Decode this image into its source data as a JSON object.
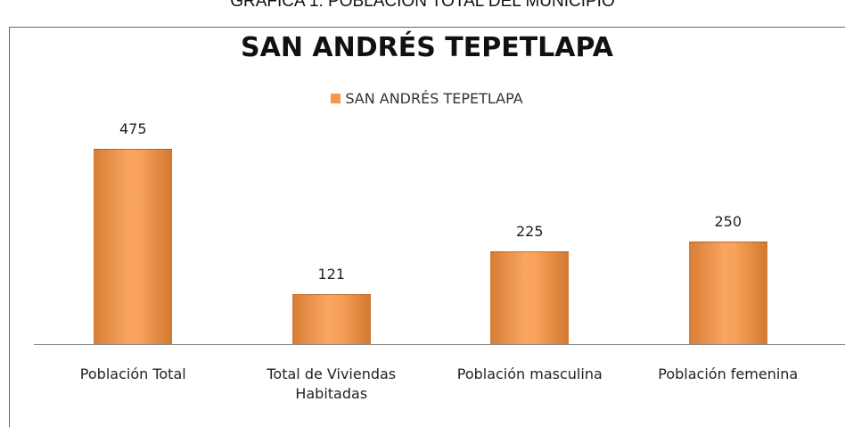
{
  "caption": "GRÁFICA 1.  POBLACIÓN  TOTAL DEL MUNICIPIO",
  "chart_data": {
    "type": "bar",
    "title": "SAN ANDRÉS TEPETLAPA",
    "categories": [
      "Población Total",
      "Total de Viviendas Habitadas",
      "Población masculina",
      "Población femenina"
    ],
    "series": [
      {
        "name": "SAN ANDRÉS TEPETLAPA",
        "color": "#f79646",
        "values": [
          475,
          121,
          225,
          250
        ]
      }
    ],
    "legend": "top"
  }
}
